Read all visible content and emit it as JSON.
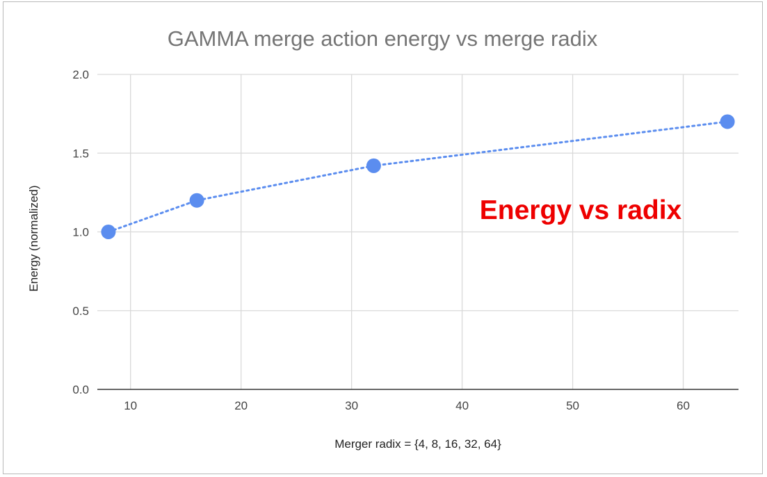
{
  "chart_data": {
    "type": "line",
    "title": "GAMMA merge action energy vs merge radix",
    "xlabel": "Merger radix = {4, 8, 16, 32, 64}",
    "ylabel": "Energy (normalized)",
    "annotation": "Energy vs radix",
    "xlim": [
      7,
      65
    ],
    "ylim": [
      0,
      2
    ],
    "xticks": [
      10,
      20,
      30,
      40,
      50,
      60
    ],
    "yticks": [
      0.0,
      0.5,
      1.0,
      1.5,
      2.0
    ],
    "xtick_labels": [
      "10",
      "20",
      "30",
      "40",
      "50",
      "60"
    ],
    "ytick_labels": [
      "0.0",
      "0.5",
      "1.0",
      "1.5",
      "2.0"
    ],
    "grid": true,
    "series": [
      {
        "x": [
          8,
          16,
          32,
          64
        ],
        "y": [
          1.0,
          1.2,
          1.42,
          1.7
        ],
        "color": "#5b8def",
        "line_style": "dotted",
        "marker": "circle"
      }
    ]
  }
}
